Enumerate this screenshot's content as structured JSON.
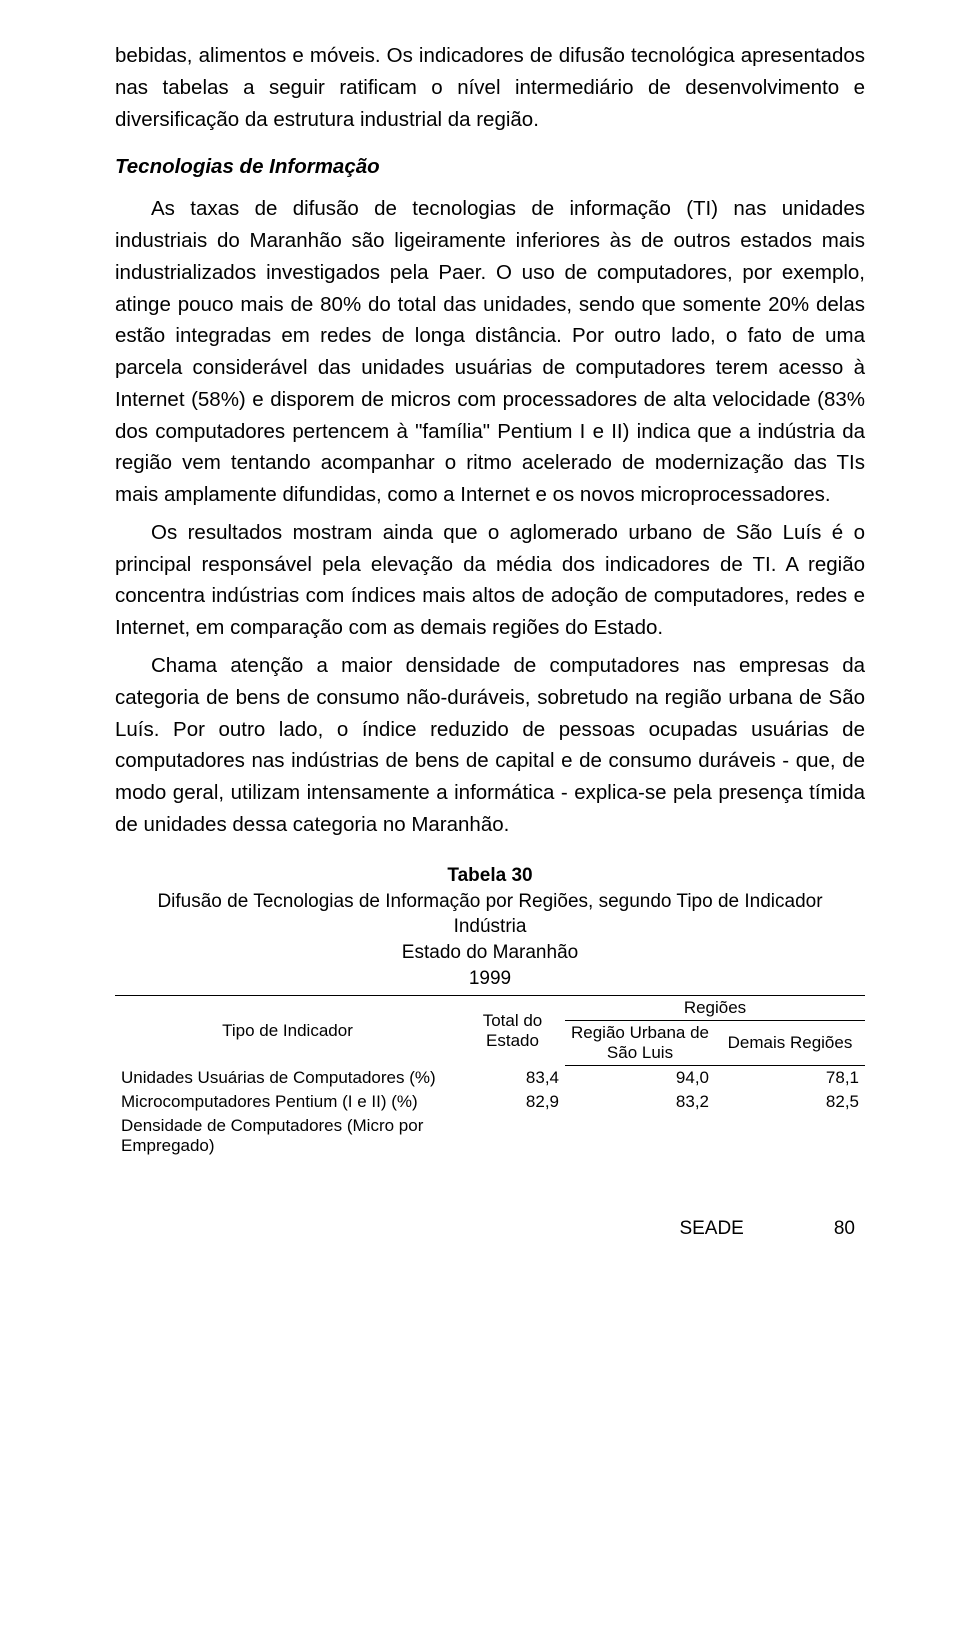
{
  "para_lead": "bebidas, alimentos e móveis. Os indicadores de difusão tecnológica apresentados nas tabelas a seguir ratificam o nível intermediário de desenvolvimento e diversificação da estrutura industrial da região.",
  "section_heading": "Tecnologias de Informação",
  "para1": "As taxas de difusão de tecnologias de informação (TI) nas unidades industriais do Maranhão são ligeiramente inferiores às de outros estados mais industrializados investigados pela Paer. O uso de computadores, por exemplo, atinge pouco mais de 80% do total das unidades, sendo que somente 20% delas estão integradas em redes de longa distância. Por outro lado, o fato de uma parcela considerável das unidades usuárias de computadores terem acesso à Internet (58%) e disporem de micros com processadores de alta velocidade (83% dos computadores pertencem à \"família\" Pentium I e II) indica que a indústria da região vem tentando acompanhar o ritmo acelerado de modernização das TIs mais amplamente difundidas, como a Internet e os novos microprocessadores.",
  "para2": "Os resultados mostram ainda que o aglomerado urbano de São Luís é o principal responsável pela elevação da média dos indicadores de TI. A região concentra indústrias com índices mais altos de adoção de computadores, redes e Internet, em comparação com as demais regiões do Estado.",
  "para3": "Chama atenção a maior densidade de computadores nas empresas da categoria de bens de consumo não-duráveis, sobretudo na região urbana de São Luís. Por outro lado, o índice reduzido de pessoas ocupadas usuárias de computadores nas indústrias de bens de capital e de consumo duráveis - que, de modo geral, utilizam intensamente a informática - explica-se pela presença tímida de unidades dessa categoria no Maranhão.",
  "table": {
    "number": "Tabela 30",
    "title": "Difusão de Tecnologias de Informação por Regiões, segundo Tipo de Indicador",
    "scope1": "Indústria",
    "scope2": "Estado do Maranhão",
    "scope3": "1999",
    "col_indicator": "Tipo de Indicador",
    "col_total": "Total do Estado",
    "col_regioes": "Regiões",
    "col_sub1": "Região Urbana de São Luis",
    "col_sub2": "Demais Regiões",
    "rows": [
      {
        "label": "Unidades Usuárias de Computadores (%)",
        "total": "83,4",
        "r1": "94,0",
        "r2": "78,1"
      },
      {
        "label": "Microcomputadores Pentium (I e II) (%)",
        "total": "82,9",
        "r1": "83,2",
        "r2": "82,5"
      },
      {
        "label": "Densidade de Computadores (Micro por Empregado)",
        "total": "",
        "r1": "",
        "r2": ""
      }
    ]
  },
  "footer": {
    "org": "SEADE",
    "page": "80"
  }
}
